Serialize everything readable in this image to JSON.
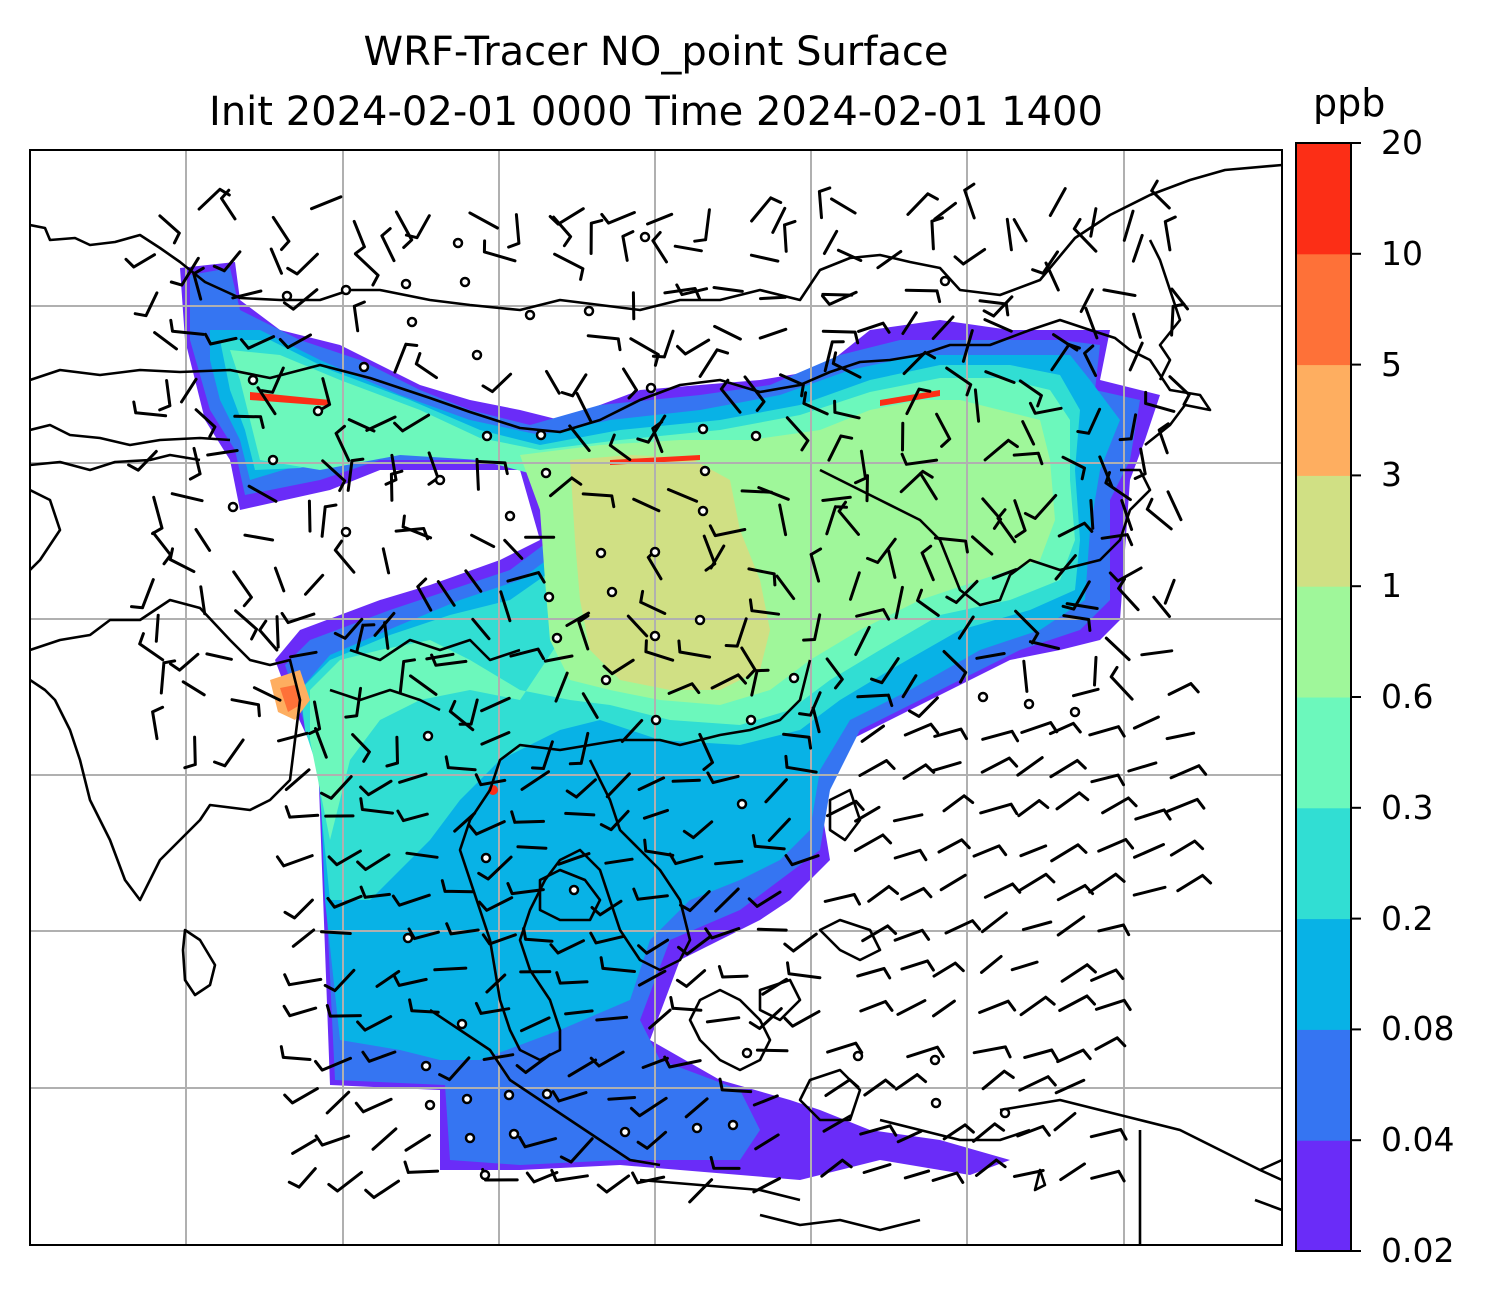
{
  "title": {
    "line1": "WRF-Tracer NO_point Surface",
    "line2": "Init 2024-02-01 0000 Time 2024-02-01 1400"
  },
  "colorbar": {
    "unit": "ppb",
    "levels": [
      "0.02",
      "0.04",
      "0.08",
      "0.2",
      "0.3",
      "0.6",
      "1",
      "3",
      "5",
      "10",
      "20"
    ],
    "colors": [
      "#6a2cf8",
      "#3575f2",
      "#08b2e6",
      "#31ded3",
      "#6cf8bc",
      "#9ff79a",
      "#d0e084",
      "#feae60",
      "#fe7138",
      "#fc2e16"
    ]
  },
  "map": {
    "projection": "lat-lon",
    "gridlines": true,
    "grid_color": "#b0b0b0",
    "coastline_color": "#000000",
    "wind_barbs": true,
    "calm_marker": "circle"
  }
}
